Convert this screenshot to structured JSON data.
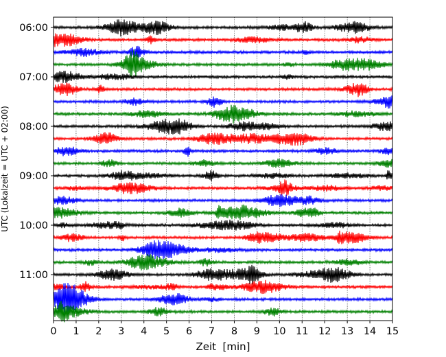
{
  "chart_data": {
    "type": "line",
    "title": "",
    "xlabel": "Zeit  [min]",
    "ylabel": "UTC (Lokalzeit = UTC + 02:00)",
    "xlim": [
      0,
      15
    ],
    "x_ticks": [
      "0",
      "1",
      "2",
      "3",
      "4",
      "5",
      "6",
      "7",
      "8",
      "9",
      "10",
      "11",
      "12",
      "13",
      "14",
      "15"
    ],
    "y_tick_labels": [
      "06:00",
      "07:00",
      "08:00",
      "09:00",
      "10:00",
      "11:00"
    ],
    "trace_interval_minutes": 15,
    "start_time": "06:00",
    "trace_count": 24,
    "color_cycle": [
      "#000000",
      "#ff0000",
      "#0000ff",
      "#008000"
    ],
    "grid": "vertical dotted lines at each minute"
  }
}
